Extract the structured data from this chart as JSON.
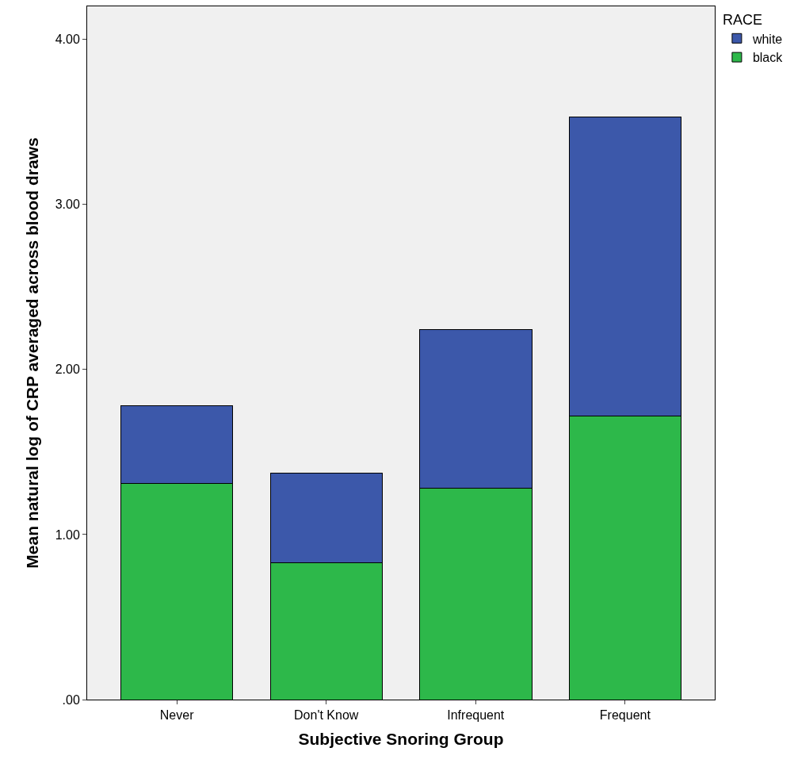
{
  "chart_data": {
    "type": "bar",
    "stacked": true,
    "xlabel": "Subjective Snoring Group",
    "ylabel": "Mean natural log of CRP averaged across blood draws",
    "legend_title": "RACE",
    "legend": "top right",
    "grid": false,
    "categories": [
      "Never",
      "Don't Know",
      "Infrequent",
      "Frequent"
    ],
    "series": [
      {
        "name": "black",
        "color": "#2db84a",
        "values": [
          1.31,
          0.83,
          1.28,
          1.72
        ]
      },
      {
        "name": "white",
        "color": "#3c58aa",
        "values": [
          0.47,
          0.54,
          0.96,
          1.81
        ]
      }
    ],
    "ylim": [
      0,
      4.2
    ],
    "yticks": [
      {
        "value": 0,
        "label": ".00"
      },
      {
        "value": 1,
        "label": "1.00"
      },
      {
        "value": 2,
        "label": "2.00"
      },
      {
        "value": 3,
        "label": "3.00"
      },
      {
        "value": 4,
        "label": "4.00"
      }
    ]
  }
}
